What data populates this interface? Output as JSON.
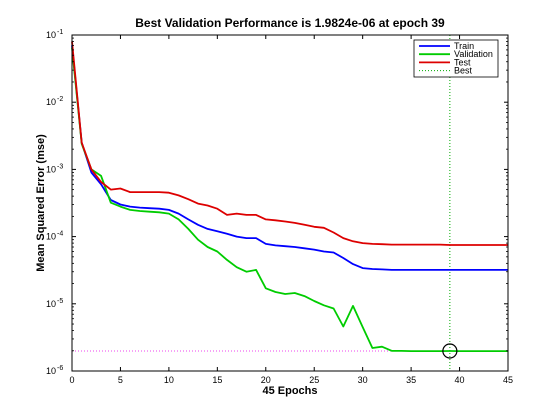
{
  "chart_data": {
    "type": "line",
    "title": "Best Validation Performance is 1.9824e-06 at epoch 39",
    "xlabel": "45 Epochs",
    "ylabel": "Mean Squared Error  (mse)",
    "xlim": [
      0,
      45
    ],
    "ylim": [
      1e-06,
      0.1
    ],
    "yscale": "log",
    "grid": false,
    "legend_position": "top-right",
    "x_ticks": [
      "0",
      "5",
      "10",
      "15",
      "20",
      "25",
      "30",
      "35",
      "40",
      "45"
    ],
    "y_ticks": [
      {
        "base": "10",
        "exp": "-1"
      },
      {
        "base": "10",
        "exp": "-2"
      },
      {
        "base": "10",
        "exp": "-3"
      },
      {
        "base": "10",
        "exp": "-4"
      },
      {
        "base": "10",
        "exp": "-5"
      },
      {
        "base": "10",
        "exp": "-6"
      }
    ],
    "epochs": [
      0,
      1,
      2,
      3,
      4,
      5,
      6,
      7,
      8,
      9,
      10,
      11,
      12,
      13,
      14,
      15,
      16,
      17,
      18,
      19,
      20,
      21,
      22,
      23,
      24,
      25,
      26,
      27,
      28,
      29,
      30,
      31,
      32,
      33,
      34,
      35,
      36,
      37,
      38,
      39,
      40,
      41,
      42,
      43,
      44,
      45
    ],
    "series": [
      {
        "name": "Train",
        "color": "#0000ff",
        "values": [
          0.07,
          0.0025,
          0.0009,
          0.0006,
          0.00035,
          0.0003,
          0.00028,
          0.00027,
          0.000265,
          0.00026,
          0.00025,
          0.00022,
          0.00018,
          0.00015,
          0.00013,
          0.00012,
          0.00011,
          0.0001,
          9.5e-05,
          9.5e-05,
          7.8e-05,
          7.4e-05,
          7.2e-05,
          7e-05,
          6.7e-05,
          6.4e-05,
          6e-05,
          5.8e-05,
          4.8e-05,
          3.9e-05,
          3.4e-05,
          3.3e-05,
          3.25e-05,
          3.2e-05,
          3.2e-05,
          3.2e-05,
          3.2e-05,
          3.2e-05,
          3.2e-05,
          3.2e-05,
          3.2e-05,
          3.2e-05,
          3.2e-05,
          3.2e-05,
          3.2e-05,
          3.2e-05
        ]
      },
      {
        "name": "Validation",
        "color": "#00cc00",
        "values": [
          0.065,
          0.0024,
          0.001,
          0.0008,
          0.00032,
          0.00028,
          0.00025,
          0.00024,
          0.000235,
          0.00023,
          0.00022,
          0.00018,
          0.00013,
          9e-05,
          7e-05,
          6e-05,
          4.5e-05,
          3.5e-05,
          3e-05,
          3.2e-05,
          1.7e-05,
          1.5e-05,
          1.4e-05,
          1.45e-05,
          1.3e-05,
          1.1e-05,
          9.5e-06,
          8.5e-06,
          4.6e-06,
          9.3e-06,
          4.5e-06,
          2.2e-06,
          2.3e-06,
          2e-06,
          1.99e-06,
          1.98e-06,
          1.98e-06,
          1.98e-06,
          1.98e-06,
          1.9824e-06,
          1.98e-06,
          1.98e-06,
          1.98e-06,
          1.98e-06,
          1.98e-06,
          1.98e-06
        ]
      },
      {
        "name": "Test",
        "color": "#dd0000",
        "values": [
          0.08,
          0.0025,
          0.001,
          0.00065,
          0.0005,
          0.00052,
          0.00046,
          0.00046,
          0.00046,
          0.00046,
          0.00045,
          0.00041,
          0.00036,
          0.00031,
          0.00029,
          0.00026,
          0.00021,
          0.00022,
          0.00021,
          0.00021,
          0.00018,
          0.000175,
          0.000168,
          0.00016,
          0.00015,
          0.00014,
          0.000135,
          0.000115,
          9.5e-05,
          8.5e-05,
          8e-05,
          7.8e-05,
          7.7e-05,
          7.6e-05,
          7.6e-05,
          7.6e-05,
          7.6e-05,
          7.6e-05,
          7.6e-05,
          7.5e-05,
          7.5e-05,
          7.5e-05,
          7.5e-05,
          7.5e-05,
          7.5e-05,
          7.5e-05
        ]
      }
    ],
    "best": {
      "name": "Best",
      "epoch": 39,
      "value": 1.9824e-06,
      "color": "#00aa00",
      "hline_color": "#ee44ee"
    }
  }
}
